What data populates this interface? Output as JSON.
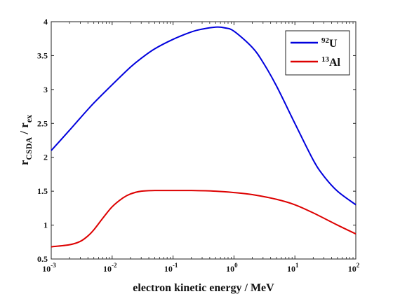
{
  "chart_data": {
    "type": "line",
    "title": "",
    "xlabel": "electron kinetic energy / MeV",
    "ylabel_main": "r",
    "ylabel_sub1": "CSDA",
    "ylabel_sep": " / r",
    "ylabel_sub2": "ex",
    "xscale": "log",
    "xlim": [
      0.001,
      100
    ],
    "ylim": [
      0.5,
      4
    ],
    "x_ticks": [
      {
        "value": 0.001,
        "base": "10",
        "exp": "-3"
      },
      {
        "value": 0.01,
        "base": "10",
        "exp": "-2"
      },
      {
        "value": 0.1,
        "base": "10",
        "exp": "-1"
      },
      {
        "value": 1,
        "base": "10",
        "exp": "0"
      },
      {
        "value": 10,
        "base": "10",
        "exp": "1"
      },
      {
        "value": 100,
        "base": "10",
        "exp": "2"
      }
    ],
    "y_ticks": [
      {
        "value": 0.5,
        "label": "0.5"
      },
      {
        "value": 1,
        "label": "1"
      },
      {
        "value": 1.5,
        "label": "1.5"
      },
      {
        "value": 2,
        "label": "2"
      },
      {
        "value": 2.5,
        "label": "2.5"
      },
      {
        "value": 3,
        "label": "3"
      },
      {
        "value": 3.5,
        "label": "3.5"
      },
      {
        "value": 4,
        "label": "4"
      }
    ],
    "grid": false,
    "legend_position": "top-right",
    "series": [
      {
        "name_sup": "92",
        "name_main": "U",
        "color": "#0000dd",
        "x": [
          0.001,
          0.002,
          0.003,
          0.005,
          0.01,
          0.02,
          0.03,
          0.05,
          0.1,
          0.2,
          0.3,
          0.5,
          0.7,
          1,
          2,
          3,
          5,
          10,
          20,
          30,
          50,
          100
        ],
        "y": [
          2.1,
          2.4,
          2.58,
          2.8,
          3.07,
          3.33,
          3.46,
          3.6,
          3.74,
          3.85,
          3.89,
          3.92,
          3.91,
          3.86,
          3.62,
          3.4,
          3.05,
          2.5,
          1.96,
          1.72,
          1.5,
          1.3
        ]
      },
      {
        "name_sup": "13",
        "name_main": "Al",
        "color": "#dd0000",
        "x": [
          0.001,
          0.002,
          0.003,
          0.004,
          0.005,
          0.007,
          0.01,
          0.015,
          0.02,
          0.03,
          0.05,
          0.1,
          0.2,
          0.5,
          1,
          2,
          5,
          10,
          20,
          50,
          100
        ],
        "y": [
          0.68,
          0.71,
          0.76,
          0.84,
          0.93,
          1.1,
          1.27,
          1.4,
          1.46,
          1.5,
          1.51,
          1.51,
          1.51,
          1.5,
          1.48,
          1.45,
          1.38,
          1.3,
          1.18,
          1.0,
          0.87
        ]
      }
    ]
  }
}
